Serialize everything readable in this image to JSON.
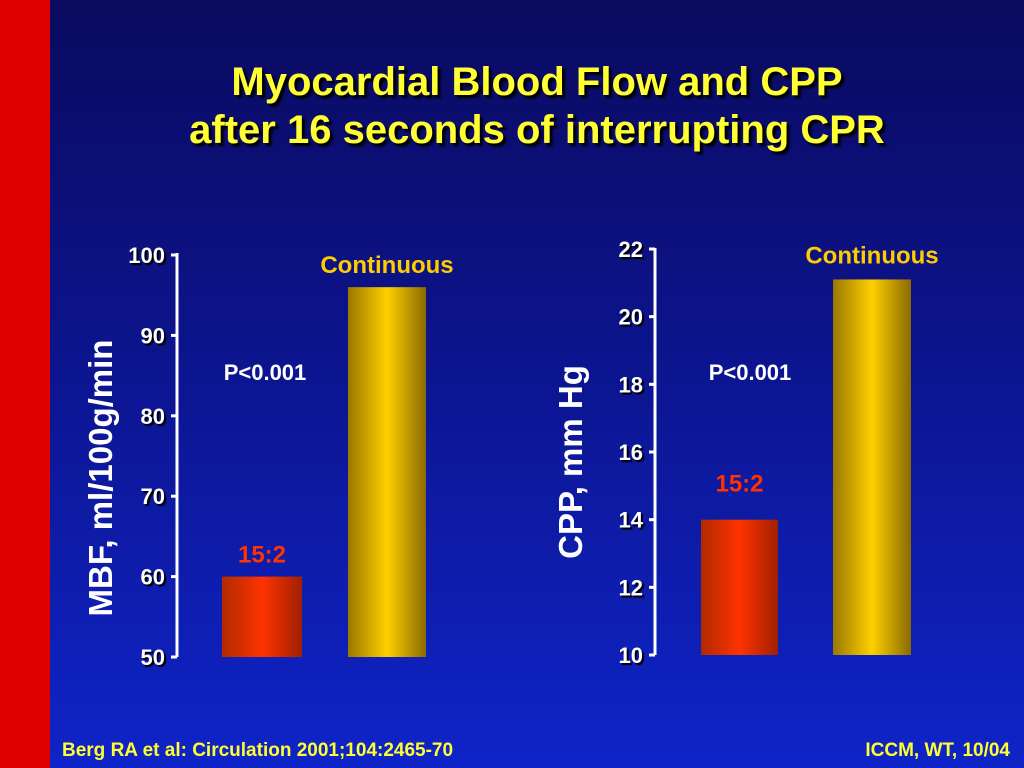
{
  "slide": {
    "title_line1": "Myocardial Blood Flow and CPP",
    "title_line2": "after 16 seconds of interrupting CPR",
    "footer_left": "Berg RA et al: Circulation 2001;104:2465-70",
    "footer_right": "ICCM, WT, 10/04"
  },
  "colors": {
    "background": "#0c148c",
    "side_strip": "#e00000",
    "title": "#ffff33",
    "bar_continuous": "#ffcc00",
    "bar_15_2": "#ff3300"
  },
  "chart_data": [
    {
      "type": "bar",
      "ylabel": "MBF, ml/100g/min",
      "ylim": [
        50,
        100
      ],
      "yticks": [
        "50",
        "60",
        "70",
        "80",
        "90",
        "100"
      ],
      "categories": [
        "15:2",
        "Continuous"
      ],
      "values": [
        60,
        96
      ],
      "annotation": "P<0.001"
    },
    {
      "type": "bar",
      "ylabel": "CPP, mm Hg",
      "ylim": [
        10,
        22
      ],
      "yticks": [
        "10",
        "12",
        "14",
        "16",
        "18",
        "20",
        "22"
      ],
      "categories": [
        "15:2",
        "Continuous"
      ],
      "values": [
        14,
        21.1
      ],
      "annotation": "P<0.001"
    }
  ]
}
